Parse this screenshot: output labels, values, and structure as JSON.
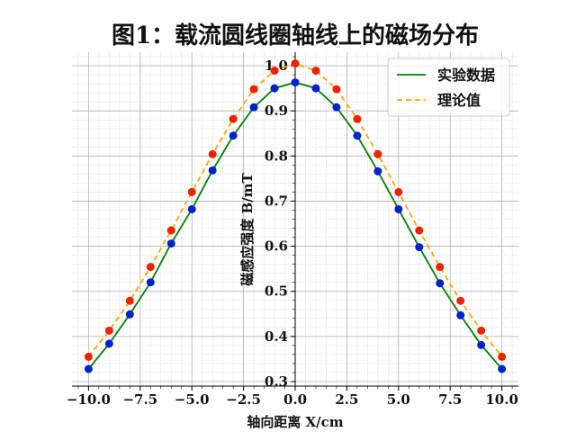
{
  "chart_data": {
    "type": "line",
    "title": "图1：载流圆线圈轴线上的磁场分布",
    "xlabel": "轴向距离 X/cm",
    "ylabel": "磁感应强度 B/mT",
    "xlim": [
      -10.8,
      10.8
    ],
    "ylim": [
      0.29,
      1.03
    ],
    "xticks": [
      -10.0,
      -7.5,
      -5.0,
      -2.5,
      0.0,
      2.5,
      5.0,
      7.5,
      10.0
    ],
    "xtick_labels": [
      "−10.0",
      "−7.5",
      "−5.0",
      "−2.5",
      "0.0",
      "2.5",
      "5.0",
      "7.5",
      "10.0"
    ],
    "yticks": [
      0.3,
      0.4,
      0.5,
      0.6,
      0.7,
      0.8,
      0.9,
      1.0
    ],
    "ytick_labels": [
      "0.3",
      "0.4",
      "0.5",
      "0.6",
      "0.7",
      "0.8",
      "0.9",
      "1.0"
    ],
    "grid": true,
    "legend_position": "top-right",
    "x": [
      -10,
      -9,
      -8,
      -7,
      -6,
      -5,
      -4,
      -3,
      -2,
      -1,
      0,
      1,
      2,
      3,
      4,
      5,
      6,
      7,
      8,
      9,
      10
    ],
    "series": [
      {
        "name": "实验数据",
        "style": "solid",
        "line_color": "#008000",
        "marker_color": "#0022cc",
        "values": [
          0.328,
          0.384,
          0.449,
          0.52,
          0.606,
          0.682,
          0.768,
          0.845,
          0.908,
          0.95,
          0.963,
          0.95,
          0.908,
          0.845,
          0.766,
          0.682,
          0.598,
          0.518,
          0.447,
          0.381,
          0.328
        ]
      },
      {
        "name": "理论值",
        "style": "dashed",
        "line_color": "#ffa500",
        "marker_color": "#ee2200",
        "values": [
          0.355,
          0.413,
          0.479,
          0.554,
          0.635,
          0.72,
          0.804,
          0.882,
          0.948,
          0.989,
          1.005,
          0.989,
          0.948,
          0.882,
          0.804,
          0.72,
          0.635,
          0.554,
          0.479,
          0.413,
          0.355
        ]
      }
    ]
  }
}
